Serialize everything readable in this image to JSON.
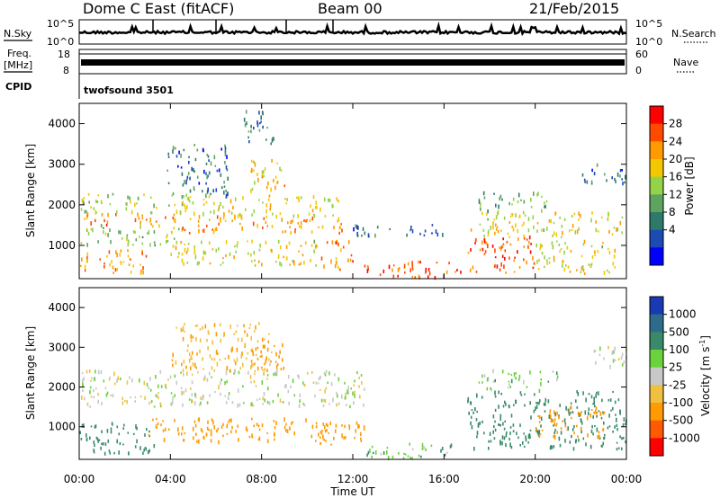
{
  "header": {
    "title": "Dome C East (fitACF)",
    "beam": "Beam 00",
    "date": "21/Feb/2015"
  },
  "status_panel": {
    "nsky_label": "N.Sky",
    "nsearch_label": "N.Search",
    "freq_label": "Freq.",
    "freq_unit": "[MHz]",
    "nave_label": "Nave",
    "cpid_label": "CPID",
    "cpid_value": "twofsound 3501",
    "noise_ticks_left": [
      "10^5",
      "10^0"
    ],
    "noise_ticks_right": [
      "10^5",
      "10^0"
    ],
    "freq_ticks": [
      "18",
      "8"
    ],
    "nave_ticks": [
      "60",
      "0"
    ]
  },
  "power_panel": {
    "ylabel": "Slant Range [km]",
    "colorbar_label": "Power [dB]",
    "colorbar_ticks": [
      "28",
      "24",
      "20",
      "16",
      "12",
      "8",
      "4"
    ],
    "colorbar_colors": [
      "#ff0000",
      "#ff4a00",
      "#ff9a00",
      "#f4c800",
      "#94d24a",
      "#5ea45e",
      "#2e7a6a",
      "#1e4ab4",
      "#0000ff"
    ]
  },
  "velocity_panel": {
    "ylabel": "Slant Range [km]",
    "colorbar_label": "Velocity [m s",
    "colorbar_label_sup": "-1",
    "colorbar_label_end": "]",
    "colorbar_ticks": [
      "1000",
      "500",
      "100",
      "25",
      "-25",
      "-100",
      "-500",
      "-1000"
    ],
    "colorbar_colors": [
      "#1a3ab4",
      "#2e6a8a",
      "#3a8a6a",
      "#6ad23a",
      "#c8c8c8",
      "#f0c040",
      "#ff9a00",
      "#ff5a00",
      "#ff0000"
    ]
  },
  "x_axis": {
    "label": "Time UT",
    "ticks": [
      "00:00",
      "04:00",
      "08:00",
      "12:00",
      "16:00",
      "20:00",
      "00:00"
    ]
  },
  "chart_data": [
    {
      "type": "heatmap",
      "title": "Power",
      "xlabel": "Time UT",
      "ylabel": "Slant Range [km]",
      "x_range_hours": [
        0,
        24
      ],
      "y_range_km": [
        180,
        4500
      ],
      "y_ticks": [
        1000,
        2000,
        3000,
        4000
      ],
      "colorbar": {
        "label": "Power [dB]",
        "range": [
          0,
          30
        ],
        "ticks": [
          4,
          8,
          12,
          16,
          20,
          24,
          28
        ]
      },
      "blobs": [
        {
          "t": [
            0.0,
            3.0
          ],
          "r": [
            300,
            900
          ],
          "v": 22
        },
        {
          "t": [
            0.0,
            4.5
          ],
          "r": [
            1000,
            1500
          ],
          "v": 14
        },
        {
          "t": [
            0.2,
            4.5
          ],
          "r": [
            1500,
            1800
          ],
          "v": 24
        },
        {
          "t": [
            0.0,
            5.0
          ],
          "r": [
            1800,
            2300
          ],
          "v": 15
        },
        {
          "t": [
            4.0,
            11.5
          ],
          "r": [
            1300,
            1700
          ],
          "v": 22
        },
        {
          "t": [
            4.5,
            11.5
          ],
          "r": [
            1700,
            2200
          ],
          "v": 18
        },
        {
          "t": [
            7.5,
            9.0
          ],
          "r": [
            2200,
            3200
          ],
          "v": 20
        },
        {
          "t": [
            4.0,
            10.5
          ],
          "r": [
            500,
            1100
          ],
          "v": 18
        },
        {
          "t": [
            10.5,
            12.0
          ],
          "r": [
            400,
            1100
          ],
          "v": 24
        },
        {
          "t": [
            3.8,
            6.5
          ],
          "r": [
            2200,
            3500
          ],
          "v": 6
        },
        {
          "t": [
            7.0,
            8.5
          ],
          "r": [
            3500,
            4300
          ],
          "v": 8
        },
        {
          "t": [
            12.2,
            16.8
          ],
          "r": [
            200,
            600
          ],
          "v": 27
        },
        {
          "t": [
            12.0,
            16.0
          ],
          "r": [
            1200,
            1500
          ],
          "v": 6
        },
        {
          "t": [
            17.0,
            23.8
          ],
          "r": [
            1200,
            1800
          ],
          "v": 18
        },
        {
          "t": [
            17.0,
            20.0
          ],
          "r": [
            300,
            1200
          ],
          "v": 26
        },
        {
          "t": [
            20.0,
            23.5
          ],
          "r": [
            300,
            1100
          ],
          "v": 18
        },
        {
          "t": [
            17.5,
            20.5
          ],
          "r": [
            1800,
            2300
          ],
          "v": 12
        },
        {
          "t": [
            22.0,
            24.0
          ],
          "r": [
            2500,
            3000
          ],
          "v": 6
        }
      ]
    },
    {
      "type": "heatmap",
      "title": "Velocity",
      "xlabel": "Time UT",
      "ylabel": "Slant Range [km]",
      "x_range_hours": [
        0,
        24
      ],
      "y_range_km": [
        180,
        4500
      ],
      "y_ticks": [
        1000,
        2000,
        3000,
        4000
      ],
      "colorbar": {
        "label": "Velocity [m s-1]",
        "ticks": [
          1000,
          500,
          100,
          25,
          -25,
          -100,
          -500,
          -1000
        ]
      },
      "blobs": [
        {
          "t": [
            0.0,
            3.5
          ],
          "r": [
            300,
            1100
          ],
          "v": 200
        },
        {
          "t": [
            0.0,
            12.5
          ],
          "r": [
            1500,
            2400
          ],
          "v": 0
        },
        {
          "t": [
            3.0,
            11.0
          ],
          "r": [
            600,
            1200
          ],
          "v": -300
        },
        {
          "t": [
            7.5,
            9.0
          ],
          "r": [
            2400,
            3200
          ],
          "v": -200
        },
        {
          "t": [
            4.0,
            8.5
          ],
          "r": [
            2400,
            3600
          ],
          "v": -80
        },
        {
          "t": [
            10.5,
            12.5
          ],
          "r": [
            500,
            1200
          ],
          "v": -300
        },
        {
          "t": [
            12.5,
            16.5
          ],
          "r": [
            200,
            600
          ],
          "v": 80
        },
        {
          "t": [
            17.0,
            24.0
          ],
          "r": [
            400,
            1900
          ],
          "v": 400
        },
        {
          "t": [
            20.0,
            23.0
          ],
          "r": [
            700,
            1500
          ],
          "v": -300
        },
        {
          "t": [
            17.5,
            21.0
          ],
          "r": [
            1900,
            2400
          ],
          "v": 60
        },
        {
          "t": [
            22.5,
            24.0
          ],
          "r": [
            2400,
            3000
          ],
          "v": 0
        }
      ]
    }
  ]
}
